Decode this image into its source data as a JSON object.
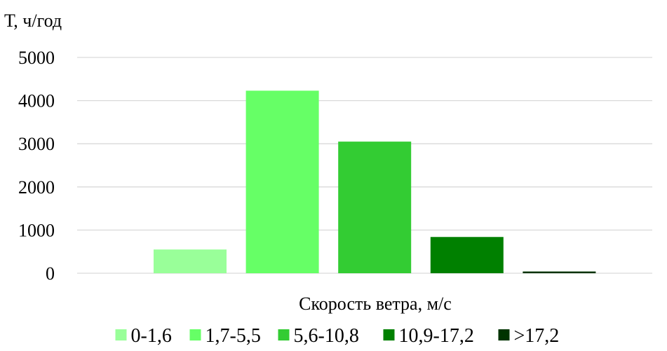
{
  "chart_data": {
    "type": "bar",
    "ylabel": "Т, ч/год",
    "xlabel": "Скорость ветра, м/с",
    "ylim": [
      0,
      5000
    ],
    "yticks": [
      0,
      1000,
      2000,
      3000,
      4000,
      5000
    ],
    "grid": true,
    "legend_position": "bottom",
    "categories": [
      "0-1,6",
      "1,7-5,5",
      "5,6-10,8",
      "10,9-17,2",
      ">17,2"
    ],
    "series": [
      {
        "values": [
          550,
          4230,
          3050,
          840,
          40
        ],
        "colors": [
          "#99ff99",
          "#66ff66",
          "#33cc33",
          "#008000",
          "#003300"
        ]
      }
    ]
  }
}
